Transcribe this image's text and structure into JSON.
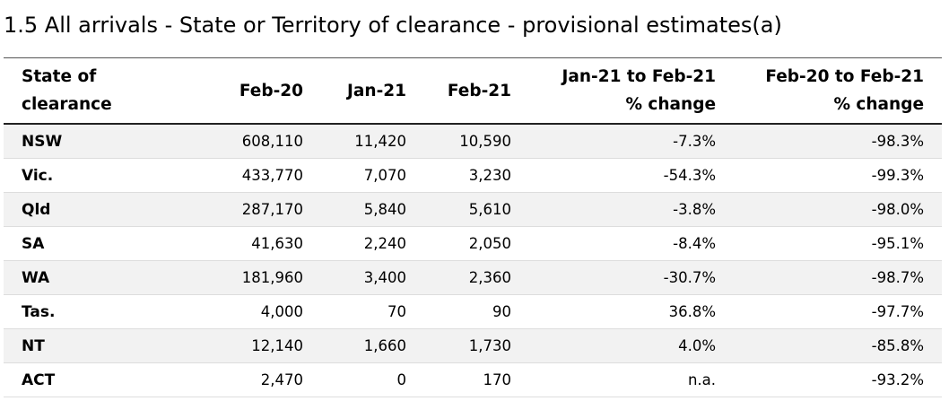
{
  "title": "1.5 All arrivals - State or Territory of clearance - provisional estimates(a)",
  "table": {
    "headers": {
      "state": "State of clearance",
      "feb20": "Feb-20",
      "jan21": "Jan-21",
      "feb21": "Feb-21",
      "change1_line1": "Jan-21 to Feb-21",
      "change1_line2": "% change",
      "change2_line1": "Feb-20 to Feb-21",
      "change2_line2": "% change"
    },
    "rows": [
      {
        "state": "NSW",
        "feb20": "608,110",
        "jan21": "11,420",
        "feb21": "10,590",
        "change1": "-7.3%",
        "change2": "-98.3%"
      },
      {
        "state": "Vic.",
        "feb20": "433,770",
        "jan21": "7,070",
        "feb21": "3,230",
        "change1": "-54.3%",
        "change2": "-99.3%"
      },
      {
        "state": "Qld",
        "feb20": "287,170",
        "jan21": "5,840",
        "feb21": "5,610",
        "change1": "-3.8%",
        "change2": "-98.0%"
      },
      {
        "state": "SA",
        "feb20": "41,630",
        "jan21": "2,240",
        "feb21": "2,050",
        "change1": "-8.4%",
        "change2": "-95.1%"
      },
      {
        "state": "WA",
        "feb20": "181,960",
        "jan21": "3,400",
        "feb21": "2,360",
        "change1": "-30.7%",
        "change2": "-98.7%"
      },
      {
        "state": "Tas.",
        "feb20": "4,000",
        "jan21": "70",
        "feb21": "90",
        "change1": "36.8%",
        "change2": "-97.7%"
      },
      {
        "state": "NT",
        "feb20": "12,140",
        "jan21": "1,660",
        "feb21": "1,730",
        "change1": "4.0%",
        "change2": "-85.8%"
      },
      {
        "state": "ACT",
        "feb20": "2,470",
        "jan21": "0",
        "feb21": "170",
        "change1": "n.a.",
        "change2": "-93.2%"
      }
    ]
  }
}
